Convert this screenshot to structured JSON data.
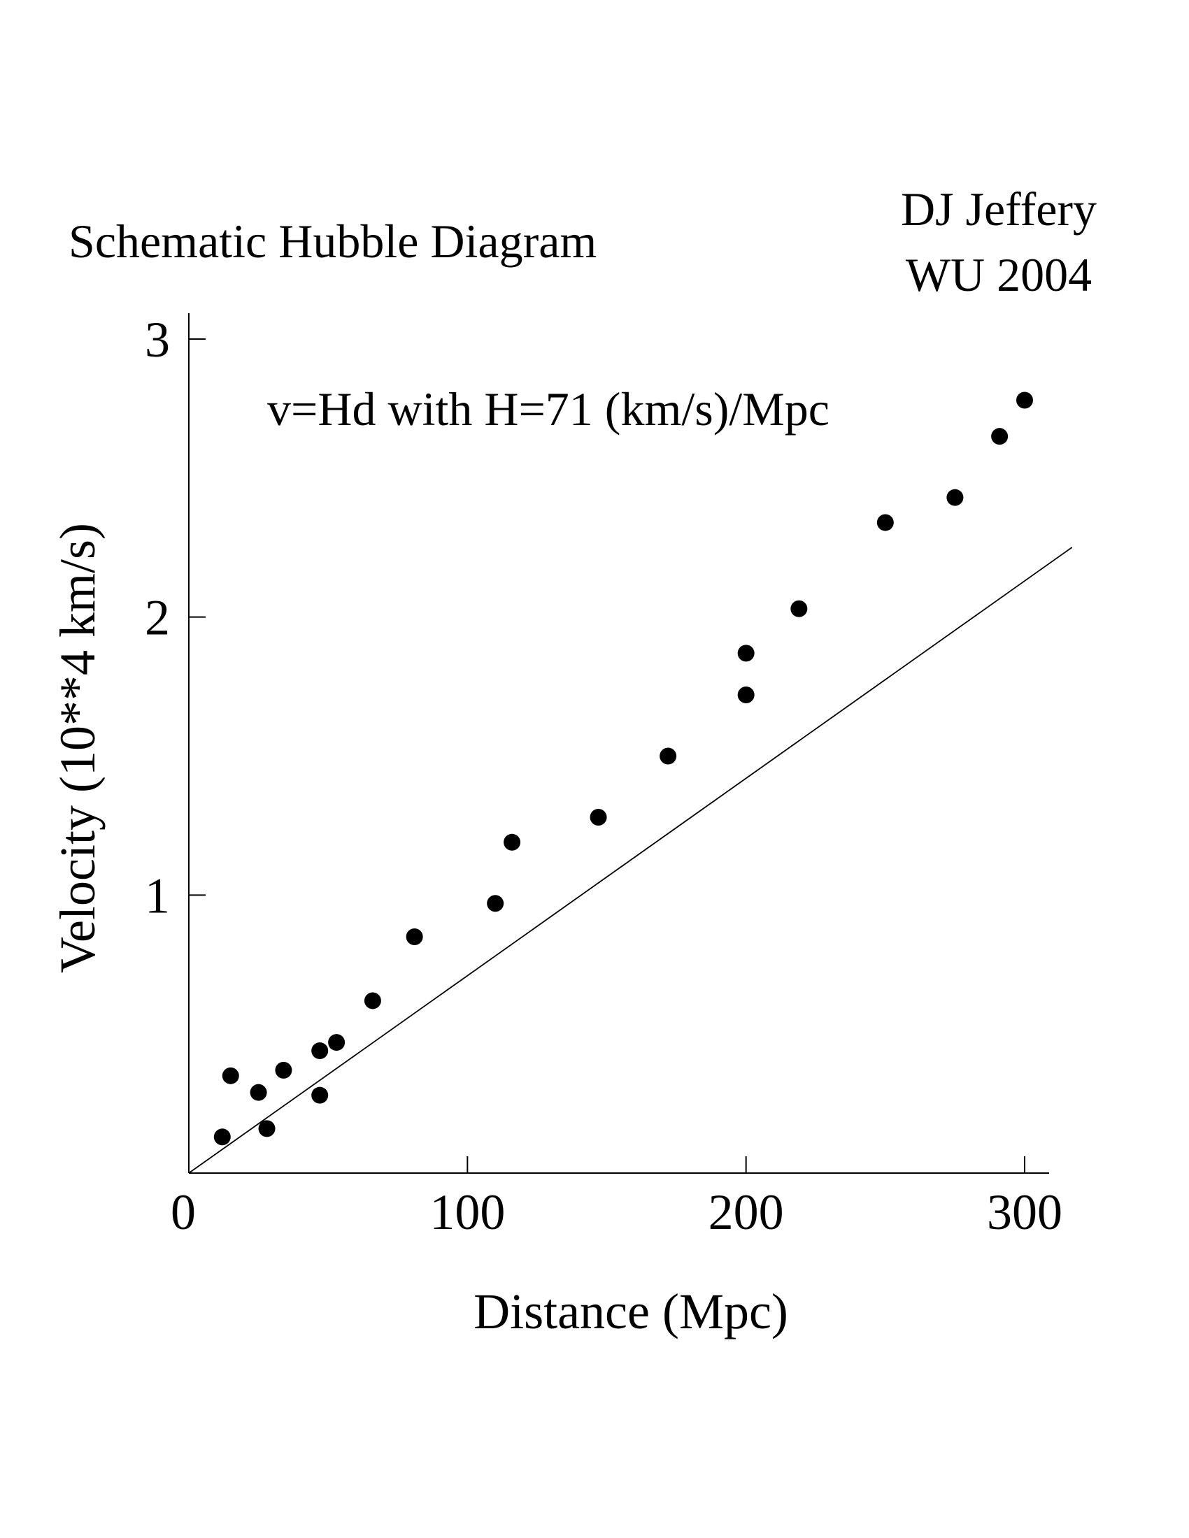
{
  "chart_data": {
    "type": "scatter",
    "title": "Schematic Hubble Diagram",
    "credit": [
      "DJ Jeffery",
      "WU 2004"
    ],
    "annotation": "v=Hd with H=71 (km/s)/Mpc",
    "xlabel": "Distance (Mpc)",
    "ylabel": "Velocity (10**4 km/s)",
    "xlim": [
      0,
      310
    ],
    "ylim": [
      0,
      3.1
    ],
    "xticks": [
      0,
      100,
      200,
      300
    ],
    "xtick_labels": [
      "0",
      "100",
      "200",
      "300"
    ],
    "yticks": [
      1,
      2,
      3
    ],
    "ytick_labels": [
      "1",
      "2",
      "3"
    ],
    "grid": false,
    "legend": "none",
    "series": [
      {
        "points": [
          [
            12,
            0.13
          ],
          [
            15,
            0.35
          ],
          [
            25,
            0.29
          ],
          [
            28,
            0.16
          ],
          [
            34,
            0.37
          ],
          [
            47,
            0.44
          ],
          [
            47,
            0.28
          ],
          [
            53,
            0.47
          ],
          [
            66,
            0.62
          ],
          [
            81,
            0.85
          ],
          [
            110,
            0.97
          ],
          [
            116,
            1.19
          ],
          [
            147,
            1.28
          ],
          [
            172,
            1.5
          ],
          [
            200,
            1.87
          ],
          [
            200,
            1.72
          ],
          [
            219,
            2.03
          ],
          [
            250,
            2.34
          ],
          [
            275,
            2.43
          ],
          [
            291,
            2.65
          ],
          [
            300,
            2.78
          ]
        ]
      }
    ],
    "fit_line": {
      "slope": 0.0071,
      "intercept": 0,
      "x_range": [
        0,
        317
      ]
    },
    "colors": {
      "points": "#000000",
      "line": "#000000",
      "axes": "#000000",
      "background": "#ffffff"
    }
  }
}
